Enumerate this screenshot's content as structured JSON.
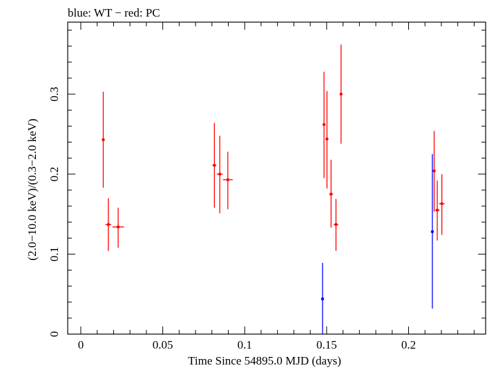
{
  "chart_data": {
    "type": "scatter",
    "title": "blue: WT − red: PC",
    "xlabel": "Time Since 54895.0 MJD (days)",
    "ylabel": "(2.0−10.0 keV)/(0.3−2.0 keV)",
    "xlim": [
      -0.008,
      0.247
    ],
    "ylim": [
      0,
      0.39
    ],
    "xticks": [
      {
        "value": 0,
        "label": "0"
      },
      {
        "value": 0.05,
        "label": "0.05"
      },
      {
        "value": 0.1,
        "label": "0.1"
      },
      {
        "value": 0.15,
        "label": "0.15"
      },
      {
        "value": 0.2,
        "label": "0.2"
      }
    ],
    "yticks": [
      {
        "value": 0,
        "label": "0"
      },
      {
        "value": 0.1,
        "label": "0.1"
      },
      {
        "value": 0.2,
        "label": "0.2"
      },
      {
        "value": 0.3,
        "label": "0.3"
      }
    ],
    "series": [
      {
        "name": "WT",
        "color": "#0000ff",
        "points": [
          {
            "x": 0.1475,
            "y": 0.044,
            "xerr": 0.0003,
            "yerr_lo": 0.044,
            "yerr_hi": 0.045
          },
          {
            "x": 0.2145,
            "y": 0.128,
            "xerr": 0.0003,
            "yerr_lo": 0.096,
            "yerr_hi": 0.097
          }
        ]
      },
      {
        "name": "PC",
        "color": "#ff0000",
        "points": [
          {
            "x": 0.0137,
            "y": 0.243,
            "xerr": 0.0007,
            "yerr_lo": 0.06,
            "yerr_hi": 0.06
          },
          {
            "x": 0.0168,
            "y": 0.137,
            "xerr": 0.0018,
            "yerr_lo": 0.033,
            "yerr_hi": 0.033
          },
          {
            "x": 0.0228,
            "y": 0.134,
            "xerr": 0.0035,
            "yerr_lo": 0.026,
            "yerr_hi": 0.024
          },
          {
            "x": 0.0815,
            "y": 0.211,
            "xerr": 0.0012,
            "yerr_lo": 0.053,
            "yerr_hi": 0.053
          },
          {
            "x": 0.0848,
            "y": 0.2,
            "xerr": 0.0018,
            "yerr_lo": 0.049,
            "yerr_hi": 0.048
          },
          {
            "x": 0.0897,
            "y": 0.193,
            "xerr": 0.003,
            "yerr_lo": 0.037,
            "yerr_hi": 0.035
          },
          {
            "x": 0.1484,
            "y": 0.262,
            "xerr": 0.0008,
            "yerr_lo": 0.067,
            "yerr_hi": 0.066
          },
          {
            "x": 0.1502,
            "y": 0.244,
            "xerr": 0.0008,
            "yerr_lo": 0.062,
            "yerr_hi": 0.06
          },
          {
            "x": 0.1527,
            "y": 0.175,
            "xerr": 0.0011,
            "yerr_lo": 0.042,
            "yerr_hi": 0.043
          },
          {
            "x": 0.1557,
            "y": 0.137,
            "xerr": 0.0014,
            "yerr_lo": 0.033,
            "yerr_hi": 0.032
          },
          {
            "x": 0.1588,
            "y": 0.3,
            "xerr": 0.0007,
            "yerr_lo": 0.062,
            "yerr_hi": 0.062
          },
          {
            "x": 0.2156,
            "y": 0.204,
            "xerr": 0.0008,
            "yerr_lo": 0.051,
            "yerr_hi": 0.05
          },
          {
            "x": 0.2175,
            "y": 0.155,
            "xerr": 0.0014,
            "yerr_lo": 0.038,
            "yerr_hi": 0.037
          },
          {
            "x": 0.2203,
            "y": 0.163,
            "xerr": 0.0017,
            "yerr_lo": 0.039,
            "yerr_hi": 0.037
          }
        ]
      }
    ]
  }
}
